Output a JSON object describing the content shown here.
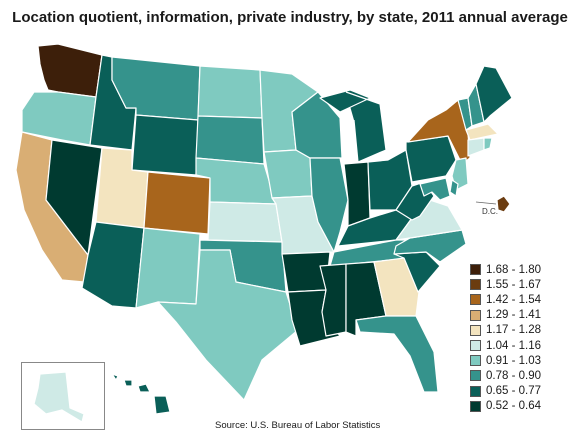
{
  "title": "Location quotient, information, private industry, by state, 2011 annual average",
  "source": "Source:  U.S. Bureau of Labor Statistics",
  "dc_label": "D.C.",
  "legend": [
    {
      "label": "1.68 - 1.80",
      "color": "#3d1f0a"
    },
    {
      "label": "1.55 - 1.67",
      "color": "#6b3c10"
    },
    {
      "label": "1.42 - 1.54",
      "color": "#a8651c"
    },
    {
      "label": "1.29 - 1.41",
      "color": "#d9ae74"
    },
    {
      "label": "1.17 - 1.28",
      "color": "#f3e4bf"
    },
    {
      "label": "1.04 - 1.16",
      "color": "#cfeae6"
    },
    {
      "label": "0.91 - 1.03",
      "color": "#7fcac0"
    },
    {
      "label": "0.78 - 0.90",
      "color": "#35938c"
    },
    {
      "label": "0.65 - 0.77",
      "color": "#0a5f58"
    },
    {
      "label": "0.52 - 0.64",
      "color": "#003a30"
    }
  ],
  "states": {
    "WA": "1.68 - 1.80",
    "OR": "0.91 - 1.03",
    "CA": "1.29 - 1.41",
    "NV": "0.52 - 0.64",
    "ID": "0.65 - 0.77",
    "MT": "0.78 - 0.90",
    "WY": "0.65 - 0.77",
    "UT": "1.17 - 1.28",
    "CO": "1.42 - 1.54",
    "AZ": "0.65 - 0.77",
    "NM": "0.91 - 1.03",
    "ND": "0.91 - 1.03",
    "SD": "0.78 - 0.90",
    "NE": "0.91 - 1.03",
    "KS": "1.04 - 1.16",
    "OK": "0.78 - 0.90",
    "TX": "0.91 - 1.03",
    "MN": "0.91 - 1.03",
    "IA": "0.91 - 1.03",
    "MO": "1.04 - 1.16",
    "AR": "0.52 - 0.64",
    "LA": "0.52 - 0.64",
    "WI": "0.78 - 0.90",
    "IL": "0.78 - 0.90",
    "MI": "0.65 - 0.77",
    "IN": "0.52 - 0.64",
    "OH": "0.65 - 0.77",
    "KY": "0.65 - 0.77",
    "TN": "0.78 - 0.90",
    "MS": "0.52 - 0.64",
    "AL": "0.52 - 0.64",
    "GA": "1.17 - 1.28",
    "FL": "0.78 - 0.90",
    "SC": "0.65 - 0.77",
    "NC": "0.78 - 0.90",
    "VA": "1.04 - 1.16",
    "WV": "0.65 - 0.77",
    "PA": "0.65 - 0.77",
    "NY": "1.42 - 1.54",
    "VT": "0.78 - 0.90",
    "NH": "0.78 - 0.90",
    "ME": "0.65 - 0.77",
    "MA": "1.17 - 1.28",
    "CT": "1.04 - 1.16",
    "RI": "0.91 - 1.03",
    "NJ": "0.91 - 1.03",
    "DE": "0.78 - 0.90",
    "MD": "0.78 - 0.90",
    "DC": "1.55 - 1.67",
    "AK": "1.04 - 1.16",
    "HI": "0.65 - 0.77"
  }
}
